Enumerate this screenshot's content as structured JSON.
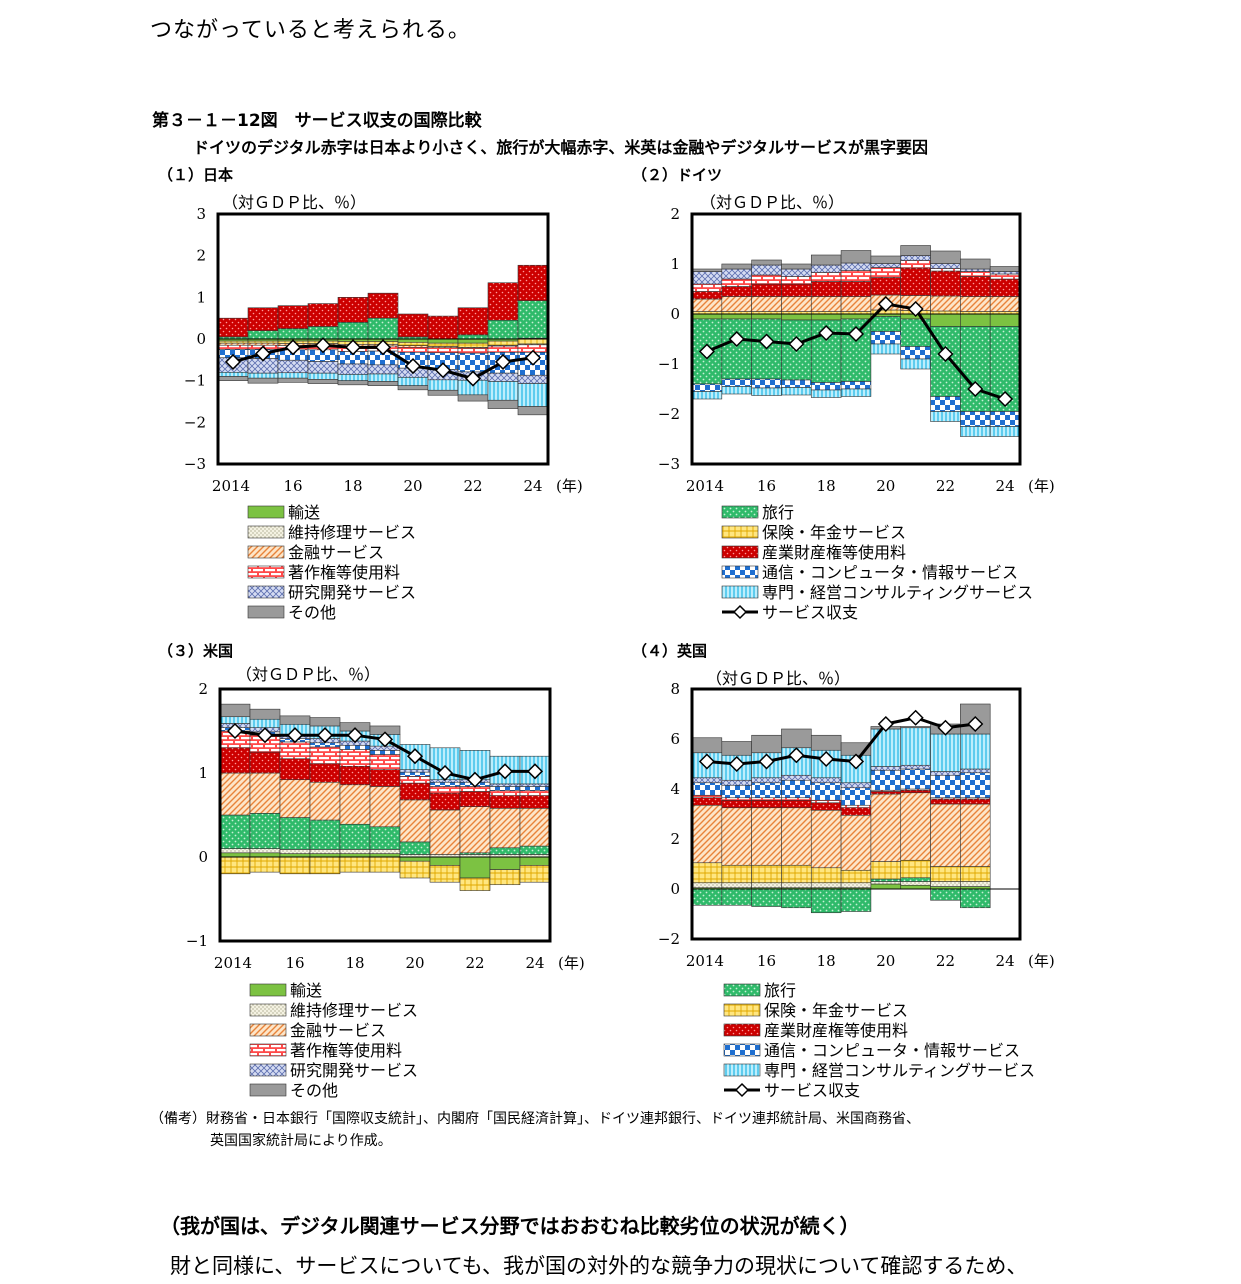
{
  "intro_text": "つながっていると考えられる。",
  "figure": {
    "title": "第３－１－12図　サービス収支の国際比較",
    "subtitle": "ドイツのデジタル赤字は日本より小さく、旅行が大幅赤字、米英は金融やデジタルサービスが黒字要因",
    "unit_label": "（対ＧＤＰ比、％）",
    "year_suffix": "(年)"
  },
  "colors": {
    "transport": "#7cc242",
    "maintenance": "#f2f0dc",
    "finance": "#f5c493",
    "copyright": "#ff5555",
    "rnd": "#b9c4e8",
    "other": "#999999",
    "travel": "#2fba6a",
    "insurance": "#ffe680",
    "ip": "#d40000",
    "telecom": "#1f6fd0",
    "consulting": "#6fd3f2",
    "balance": "#000000"
  },
  "legend_left": [
    {
      "key": "transport",
      "label": "輸送"
    },
    {
      "key": "maintenance",
      "label": "維持修理サービス"
    },
    {
      "key": "finance",
      "label": "金融サービス"
    },
    {
      "key": "copyright",
      "label": "著作権等使用料"
    },
    {
      "key": "rnd",
      "label": "研究開発サービス"
    },
    {
      "key": "other",
      "label": "その他"
    }
  ],
  "legend_right": [
    {
      "key": "travel",
      "label": "旅行"
    },
    {
      "key": "insurance",
      "label": "保険・年金サービス"
    },
    {
      "key": "ip",
      "label": "産業財産権等使用料"
    },
    {
      "key": "telecom",
      "label": "通信・コンピュータ・情報サービス"
    },
    {
      "key": "consulting",
      "label": "専門・経営コンサルティングサービス"
    },
    {
      "key": "balance",
      "label": "サービス収支"
    }
  ],
  "chart_data": [
    {
      "type": "bar",
      "stacked": true,
      "panel_title": "（１）日本",
      "ylabel": "（対ＧＤＰ比、％）",
      "ylim": [
        -3,
        3
      ],
      "yticks": [
        "3",
        "2",
        "1",
        "0",
        "−1",
        "−2",
        "−3"
      ],
      "x": [
        2014,
        2015,
        2016,
        2017,
        2018,
        2019,
        2020,
        2021,
        2022,
        2023,
        2024
      ],
      "xtick_labels": [
        "2014",
        "16",
        "18",
        "20",
        "22",
        "24"
      ],
      "series": [
        {
          "key": "transport",
          "values": [
            -0.05,
            -0.05,
            -0.05,
            -0.05,
            -0.06,
            -0.06,
            -0.08,
            -0.1,
            -0.1,
            -0.05,
            0.02
          ]
        },
        {
          "key": "travel",
          "values": [
            0.05,
            0.2,
            0.25,
            0.3,
            0.4,
            0.5,
            0.05,
            0.0,
            0.1,
            0.45,
            0.9
          ]
        },
        {
          "key": "insurance",
          "values": [
            -0.05,
            -0.05,
            -0.06,
            -0.06,
            -0.07,
            -0.07,
            -0.08,
            -0.08,
            -0.1,
            -0.1,
            -0.12
          ]
        },
        {
          "key": "ip",
          "values": [
            0.45,
            0.55,
            0.55,
            0.55,
            0.6,
            0.6,
            0.55,
            0.55,
            0.65,
            0.9,
            0.85
          ]
        },
        {
          "key": "finance",
          "values": [
            -0.05,
            -0.05,
            -0.05,
            -0.05,
            -0.05,
            -0.04,
            -0.04,
            -0.03,
            -0.02,
            -0.02,
            -0.02
          ]
        },
        {
          "key": "copyright",
          "values": [
            -0.1,
            -0.1,
            -0.1,
            -0.1,
            -0.12,
            -0.12,
            -0.12,
            -0.12,
            -0.12,
            -0.15,
            -0.18
          ]
        },
        {
          "key": "telecom",
          "values": [
            -0.2,
            -0.22,
            -0.25,
            -0.28,
            -0.3,
            -0.33,
            -0.38,
            -0.4,
            -0.45,
            -0.5,
            -0.55
          ]
        },
        {
          "key": "rnd",
          "values": [
            -0.35,
            -0.35,
            -0.3,
            -0.28,
            -0.25,
            -0.22,
            -0.22,
            -0.25,
            -0.2,
            -0.2,
            -0.2
          ]
        },
        {
          "key": "consulting",
          "values": [
            -0.1,
            -0.12,
            -0.13,
            -0.15,
            -0.15,
            -0.18,
            -0.2,
            -0.25,
            -0.35,
            -0.45,
            -0.55
          ]
        },
        {
          "key": "other",
          "values": [
            -0.1,
            -0.12,
            -0.1,
            -0.1,
            -0.1,
            -0.1,
            -0.1,
            -0.12,
            -0.15,
            -0.2,
            -0.2
          ]
        }
      ],
      "balance": [
        -0.55,
        -0.35,
        -0.2,
        -0.15,
        -0.2,
        -0.2,
        -0.65,
        -0.75,
        -0.95,
        -0.55,
        -0.45
      ]
    },
    {
      "type": "bar",
      "stacked": true,
      "panel_title": "（２）ドイツ",
      "ylabel": "（対ＧＤＰ比、％）",
      "ylim": [
        -3,
        2
      ],
      "yticks": [
        "2",
        "1",
        "0",
        "−1",
        "−2",
        "−3"
      ],
      "x": [
        2014,
        2015,
        2016,
        2017,
        2018,
        2019,
        2020,
        2021,
        2022,
        2023,
        2024
      ],
      "xtick_labels": [
        "2014",
        "16",
        "18",
        "20",
        "22",
        "24"
      ],
      "series": [
        {
          "key": "transport",
          "values": [
            -0.1,
            -0.1,
            -0.1,
            -0.12,
            -0.12,
            -0.1,
            -0.05,
            -0.1,
            -0.25,
            -0.25,
            -0.25
          ]
        },
        {
          "key": "travel",
          "values": [
            -1.3,
            -1.2,
            -1.2,
            -1.2,
            -1.25,
            -1.25,
            -0.3,
            -0.55,
            -1.4,
            -1.7,
            -1.7
          ]
        },
        {
          "key": "insurance",
          "values": [
            0.05,
            0.05,
            0.05,
            0.05,
            0.05,
            0.05,
            0.08,
            0.07,
            0.06,
            0.05,
            0.05
          ]
        },
        {
          "key": "finance",
          "values": [
            0.25,
            0.3,
            0.3,
            0.3,
            0.3,
            0.3,
            0.3,
            0.3,
            0.3,
            0.3,
            0.3
          ]
        },
        {
          "key": "ip",
          "values": [
            0.15,
            0.2,
            0.25,
            0.25,
            0.3,
            0.3,
            0.35,
            0.55,
            0.5,
            0.4,
            0.35
          ]
        },
        {
          "key": "copyright",
          "values": [
            0.15,
            0.15,
            0.18,
            0.15,
            0.18,
            0.22,
            0.2,
            0.15,
            0.05,
            0.1,
            0.1
          ]
        },
        {
          "key": "rnd",
          "values": [
            0.25,
            0.2,
            0.2,
            0.15,
            0.15,
            0.15,
            0.08,
            0.1,
            0.1,
            0.05,
            0.05
          ]
        },
        {
          "key": "telecom",
          "values": [
            -0.15,
            -0.15,
            -0.18,
            -0.15,
            -0.15,
            -0.15,
            -0.25,
            -0.25,
            -0.3,
            -0.3,
            -0.3
          ]
        },
        {
          "key": "consulting",
          "values": [
            -0.15,
            -0.15,
            -0.15,
            -0.15,
            -0.15,
            -0.15,
            -0.2,
            -0.2,
            -0.2,
            -0.2,
            -0.2
          ]
        },
        {
          "key": "other",
          "values": [
            0.05,
            0.1,
            0.1,
            0.1,
            0.2,
            0.25,
            0.15,
            0.2,
            0.25,
            0.2,
            0.1
          ]
        }
      ],
      "balance": [
        -0.75,
        -0.5,
        -0.55,
        -0.6,
        -0.38,
        -0.4,
        0.2,
        0.1,
        -0.8,
        -1.5,
        -1.7
      ]
    },
    {
      "type": "bar",
      "stacked": true,
      "panel_title": "（３）米国",
      "ylabel": "（対ＧＤＰ比、％）",
      "ylim": [
        -1,
        2
      ],
      "yticks": [
        "2",
        "1",
        "0",
        "−1"
      ],
      "x": [
        2014,
        2015,
        2016,
        2017,
        2018,
        2019,
        2020,
        2021,
        2022,
        2023,
        2024
      ],
      "xtick_labels": [
        "2014",
        "16",
        "18",
        "20",
        "22",
        "24"
      ],
      "series": [
        {
          "key": "transport",
          "values": [
            0.05,
            0.05,
            0.04,
            0.04,
            0.04,
            0.04,
            -0.05,
            -0.1,
            -0.25,
            -0.15,
            -0.1
          ]
        },
        {
          "key": "maintenance",
          "values": [
            0.05,
            0.05,
            0.05,
            0.05,
            0.05,
            0.05,
            0.03,
            0.03,
            0.03,
            0.03,
            0.03
          ]
        },
        {
          "key": "travel",
          "values": [
            0.4,
            0.42,
            0.38,
            0.35,
            0.3,
            0.27,
            0.15,
            0.0,
            0.02,
            0.08,
            0.1
          ]
        },
        {
          "key": "insurance",
          "values": [
            -0.2,
            -0.18,
            -0.2,
            -0.2,
            -0.18,
            -0.18,
            -0.2,
            -0.2,
            -0.15,
            -0.18,
            -0.2
          ]
        },
        {
          "key": "finance",
          "values": [
            0.5,
            0.48,
            0.45,
            0.45,
            0.47,
            0.48,
            0.5,
            0.53,
            0.55,
            0.47,
            0.45
          ]
        },
        {
          "key": "ip",
          "values": [
            0.3,
            0.25,
            0.25,
            0.22,
            0.22,
            0.2,
            0.2,
            0.2,
            0.18,
            0.15,
            0.15
          ]
        },
        {
          "key": "copyright",
          "values": [
            0.2,
            0.2,
            0.2,
            0.2,
            0.2,
            0.18,
            0.08,
            0.08,
            0.06,
            0.06,
            0.06
          ]
        },
        {
          "key": "telecom",
          "values": [
            0.04,
            0.04,
            0.04,
            0.05,
            0.05,
            0.05,
            0.05,
            0.05,
            0.05,
            0.05,
            0.05
          ]
        },
        {
          "key": "rnd",
          "values": [
            0.05,
            0.05,
            0.05,
            0.05,
            0.05,
            0.05,
            0.03,
            0.03,
            0.03,
            0.03,
            0.03
          ]
        },
        {
          "key": "consulting",
          "values": [
            0.08,
            0.1,
            0.12,
            0.15,
            0.12,
            0.14,
            0.3,
            0.38,
            0.35,
            0.33,
            0.33
          ]
        },
        {
          "key": "other",
          "values": [
            0.15,
            0.12,
            0.1,
            0.1,
            0.1,
            0.1,
            0.0,
            0.0,
            0.0,
            0.0,
            0.0
          ]
        }
      ],
      "balance": [
        1.5,
        1.45,
        1.45,
        1.45,
        1.45,
        1.4,
        1.2,
        1.0,
        0.92,
        1.02,
        1.02
      ]
    },
    {
      "type": "bar",
      "stacked": true,
      "panel_title": "（４）英国",
      "ylabel": "（対ＧＤＰ比、％）",
      "ylim": [
        -2,
        8
      ],
      "yticks": [
        "8",
        "6",
        "4",
        "2",
        "0",
        "−2"
      ],
      "x": [
        2014,
        2015,
        2016,
        2017,
        2018,
        2019,
        2020,
        2021,
        2022,
        2023,
        2024
      ],
      "xtick_labels": [
        "2014",
        "16",
        "18",
        "20",
        "22",
        "24"
      ],
      "series": [
        {
          "key": "transport",
          "values": [
            0.05,
            0.05,
            0.05,
            0.05,
            0.05,
            0.05,
            0.2,
            0.15,
            0.1,
            0.1,
            null
          ]
        },
        {
          "key": "maintenance",
          "values": [
            0.2,
            0.2,
            0.2,
            0.2,
            0.2,
            0.2,
            0.1,
            0.15,
            0.2,
            0.2,
            null
          ]
        },
        {
          "key": "travel",
          "values": [
            -0.65,
            -0.65,
            -0.7,
            -0.75,
            -0.95,
            -0.9,
            0.1,
            0.15,
            -0.45,
            -0.75,
            null
          ]
        },
        {
          "key": "insurance",
          "values": [
            0.8,
            0.7,
            0.7,
            0.7,
            0.6,
            0.5,
            0.7,
            0.7,
            0.6,
            0.6,
            null
          ]
        },
        {
          "key": "finance",
          "values": [
            2.3,
            2.3,
            2.3,
            2.3,
            2.3,
            2.2,
            2.7,
            2.7,
            2.5,
            2.5,
            null
          ]
        },
        {
          "key": "ip",
          "values": [
            0.3,
            0.3,
            0.3,
            0.3,
            0.3,
            0.3,
            0.1,
            0.1,
            0.2,
            0.2,
            null
          ]
        },
        {
          "key": "copyright",
          "values": [
            0.1,
            0.1,
            0.1,
            0.1,
            0.1,
            0.1,
            0.05,
            0.05,
            0.05,
            0.05,
            null
          ]
        },
        {
          "key": "telecom",
          "values": [
            0.5,
            0.5,
            0.6,
            0.7,
            0.7,
            0.7,
            0.8,
            0.8,
            0.9,
            1.0,
            null
          ]
        },
        {
          "key": "rnd",
          "values": [
            0.2,
            0.2,
            0.2,
            0.2,
            0.2,
            0.2,
            0.15,
            0.15,
            0.15,
            0.15,
            null
          ]
        },
        {
          "key": "consulting",
          "values": [
            1.0,
            1.0,
            1.0,
            1.1,
            1.1,
            1.1,
            1.5,
            1.5,
            1.5,
            1.4,
            null
          ]
        },
        {
          "key": "other",
          "values": [
            0.6,
            0.55,
            0.7,
            0.75,
            0.6,
            0.5,
            0.1,
            0.05,
            0.4,
            1.2,
            null
          ]
        }
      ],
      "balance": [
        5.1,
        5.0,
        5.1,
        5.35,
        5.2,
        5.1,
        6.6,
        6.85,
        6.45,
        6.6,
        null
      ]
    }
  ],
  "note": {
    "line1": "（備考）財務省・日本銀行「国際収支統計」、内閣府「国民経済計算」、ドイツ連邦銀行、ドイツ連邦統計局、米国商務省、",
    "line2": "英国国家統計局により作成。"
  },
  "section_heading": "（我が国は、デジタル関連サービス分野ではおおむね比較劣位の状況が続く）",
  "body_text": "財と同様に、サービスについても、我が国の対外的な競争力の現状について確認するため、"
}
